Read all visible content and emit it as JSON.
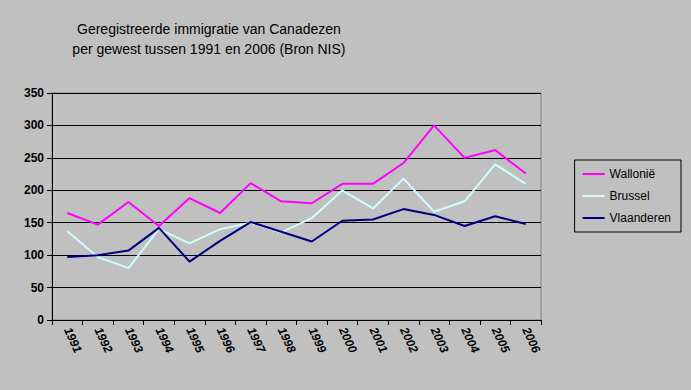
{
  "chart_data": {
    "type": "line",
    "title": "Geregistreerde immigratie van Canadezen\nper gewest tussen 1991 en 2006 (Bron NIS)",
    "categories": [
      "1991",
      "1992",
      "1993",
      "1994",
      "1995",
      "1996",
      "1997",
      "1998",
      "1999",
      "2000",
      "2001",
      "2002",
      "2003",
      "2004",
      "2005",
      "2006"
    ],
    "series": [
      {
        "name": "Wallonië",
        "color": "#ff00ff",
        "values": [
          165,
          147,
          182,
          145,
          188,
          165,
          211,
          183,
          180,
          210,
          210,
          242,
          300,
          250,
          262,
          226
        ]
      },
      {
        "name": "Brussel",
        "color": "#ccffff",
        "values": [
          137,
          97,
          80,
          140,
          118,
          140,
          150,
          135,
          157,
          200,
          172,
          218,
          167,
          183,
          240,
          210
        ]
      },
      {
        "name": "Vlaanderen",
        "color": "#000080",
        "values": [
          97,
          100,
          107,
          142,
          90,
          122,
          151,
          136,
          121,
          153,
          155,
          171,
          162,
          145,
          160,
          148
        ]
      }
    ],
    "ylim": [
      0,
      350
    ],
    "yticks": [
      0,
      50,
      100,
      150,
      200,
      250,
      300,
      350
    ],
    "grid": true,
    "legend": "right",
    "marker": "none"
  }
}
